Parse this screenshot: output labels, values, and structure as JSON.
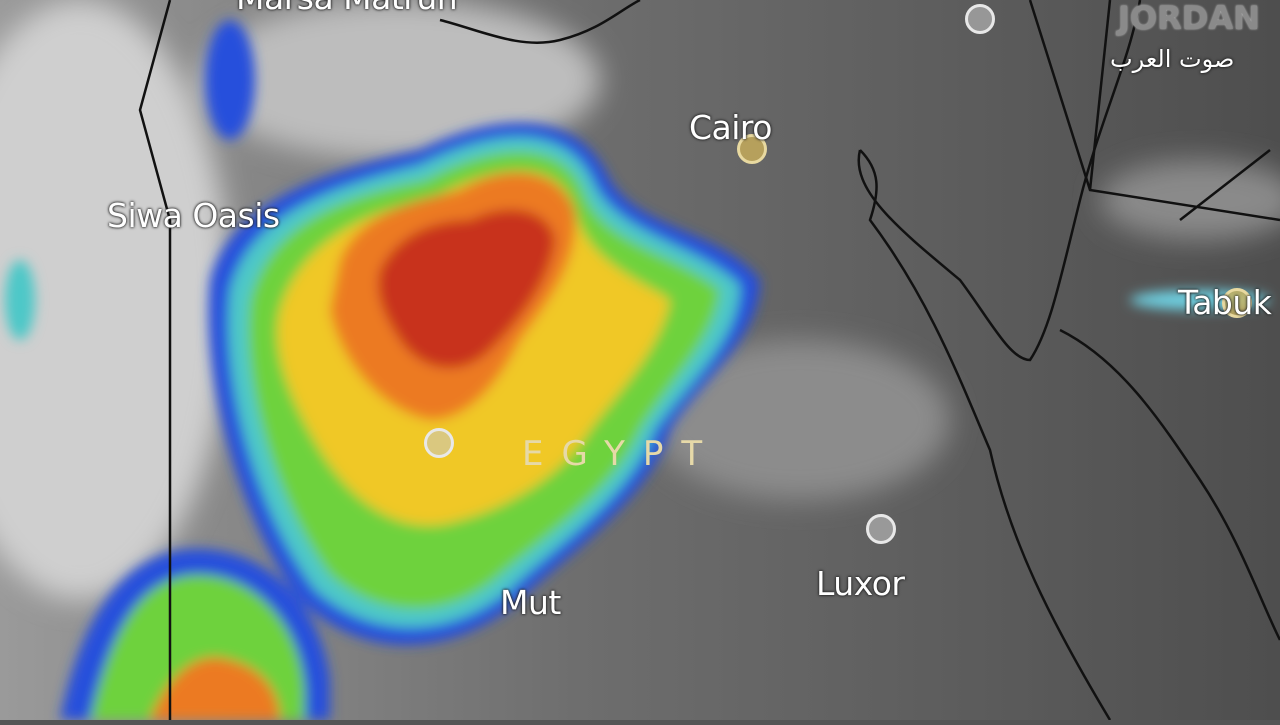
{
  "map": {
    "cities": [
      {
        "name": "Marsa Matruh",
        "marker": "city-dot"
      },
      {
        "name": "Siwa Oasis",
        "marker": "none"
      },
      {
        "name": "Cairo",
        "marker": "capital-dot"
      },
      {
        "name": "Tabuk",
        "marker": "capital-dot"
      },
      {
        "name": "Mut",
        "marker": "none"
      },
      {
        "name": "Luxor",
        "marker": "city-dot"
      }
    ],
    "countries": [
      "EGYPT",
      "JORDAN"
    ],
    "watermark": "صوت العرب",
    "colors": {
      "storm_core": "#c8321e",
      "storm_mid": "#f0b428",
      "storm_low": "#6ed23c",
      "storm_edge": "#2850dc",
      "land": "#5a5a5a"
    }
  }
}
